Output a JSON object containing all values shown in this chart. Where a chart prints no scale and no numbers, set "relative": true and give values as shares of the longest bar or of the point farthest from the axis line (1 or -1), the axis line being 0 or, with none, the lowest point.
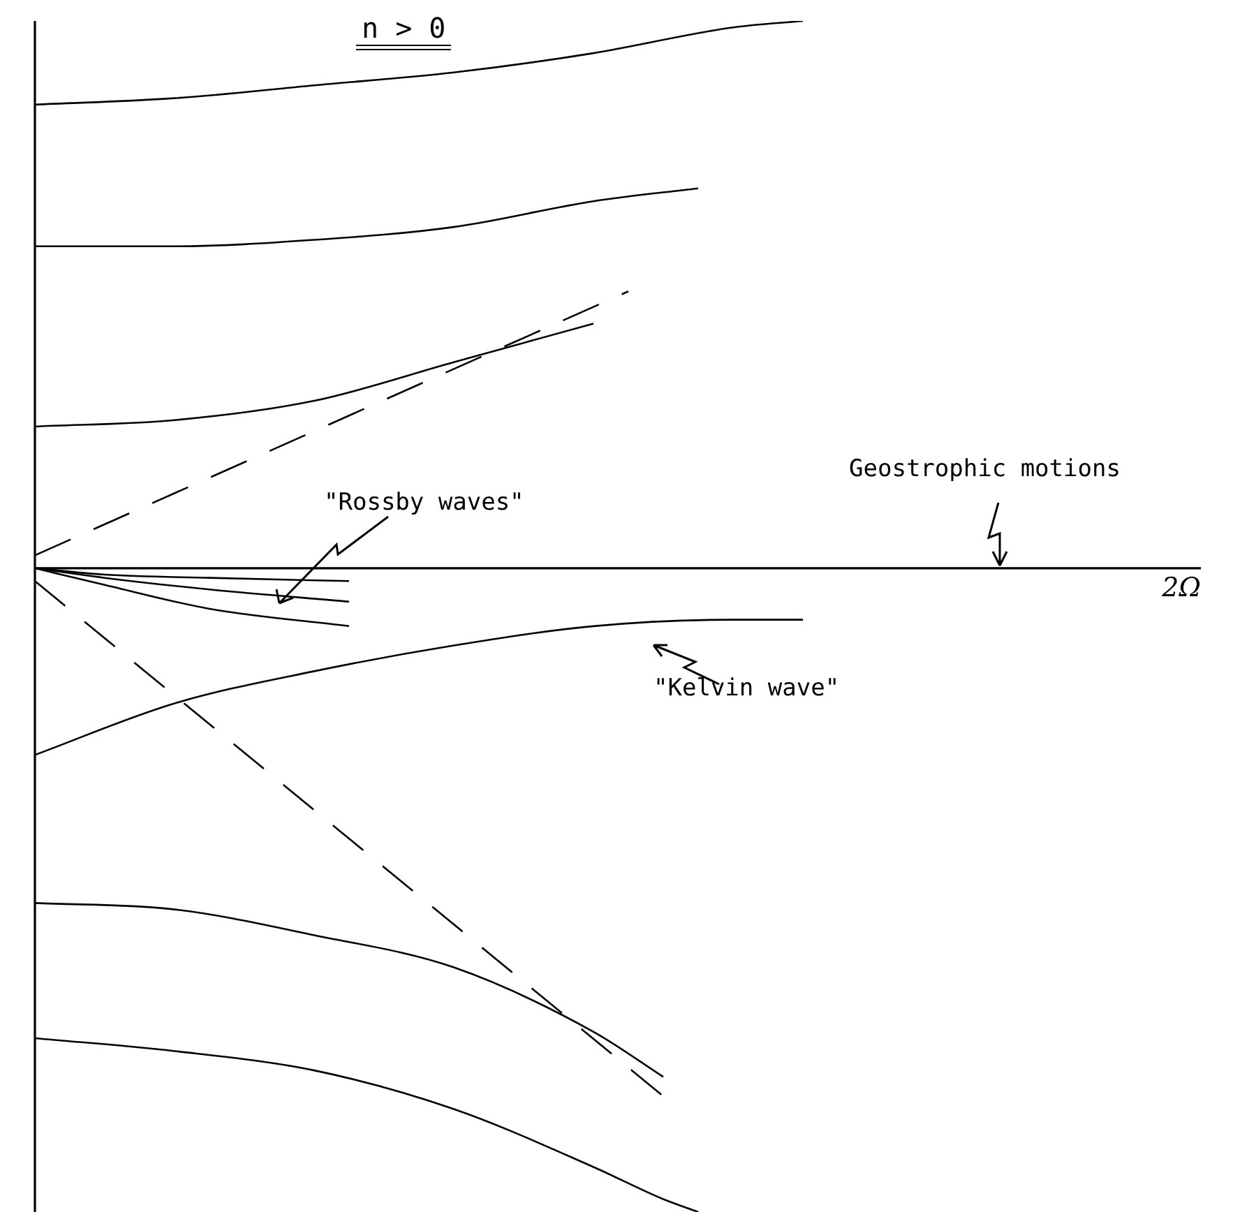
{
  "chart_data": {
    "type": "line",
    "title": "n > 0",
    "relative": true,
    "legend": false,
    "marker": "none",
    "categories": [
      null,
      null,
      null,
      null,
      null,
      null,
      null,
      null,
      null,
      null,
      null,
      null,
      null,
      null,
      null,
      null,
      null,
      null,
      null,
      null,
      null,
      null,
      null,
      null,
      null,
      null,
      null,
      null,
      null,
      null,
      null,
      null,
      null,
      null
    ],
    "series": [
      {
        "color": "#000000",
        "line_style": "solid",
        "values": [
          0.72,
          null,
          null,
          null,
          0.73,
          null,
          null,
          null,
          0.75,
          null,
          null,
          null,
          0.77,
          null,
          null,
          null,
          0.8,
          null,
          null,
          null,
          0.84,
          null,
          0.85,
          null,
          null,
          null,
          null,
          null,
          null,
          null,
          null,
          null,
          null,
          null
        ]
      },
      {
        "color": "#000000",
        "line_style": "solid",
        "values": [
          0.5,
          null,
          null,
          null,
          0.5,
          null,
          null,
          null,
          0.51,
          null,
          null,
          null,
          0.53,
          null,
          null,
          null,
          0.57,
          null,
          null,
          0.59,
          null,
          null,
          null,
          null,
          null,
          null,
          null,
          null,
          null,
          null,
          null,
          null,
          null,
          null
        ]
      },
      {
        "color": "#000000",
        "line_style": "solid",
        "values": [
          0.22,
          null,
          null,
          null,
          0.23,
          null,
          null,
          null,
          0.26,
          null,
          null,
          null,
          0.32,
          null,
          null,
          null,
          0.38,
          null,
          null,
          null,
          null,
          null,
          null,
          null,
          null,
          null,
          null,
          null,
          null,
          null,
          null,
          null,
          null,
          null
        ]
      },
      {
        "color": "#000000",
        "line_style": "dashed",
        "values": [
          0.02,
          null,
          null,
          null,
          null,
          null,
          null,
          null,
          null,
          null,
          null,
          null,
          null,
          null,
          null,
          null,
          null,
          0.43,
          null,
          null,
          null,
          null,
          null,
          null,
          null,
          null,
          null,
          null,
          null,
          null,
          null,
          null,
          null,
          null
        ]
      },
      {
        "color": "#000000",
        "line_style": "solid",
        "values": [
          0,
          null,
          -0.01,
          null,
          null,
          -0.015,
          null,
          null,
          null,
          -0.02,
          null,
          null,
          null,
          null,
          null,
          null,
          null,
          null,
          null,
          null,
          null,
          null,
          null,
          null,
          null,
          null,
          null,
          null,
          null,
          null,
          null,
          null,
          null,
          null
        ]
      },
      {
        "color": "#000000",
        "line_style": "solid",
        "values": [
          0,
          null,
          -0.015,
          null,
          null,
          -0.033,
          null,
          null,
          null,
          -0.052,
          null,
          null,
          null,
          null,
          null,
          null,
          null,
          null,
          null,
          null,
          null,
          null,
          null,
          null,
          null,
          null,
          null,
          null,
          null,
          null,
          null,
          null,
          null,
          null
        ]
      },
      {
        "color": "#000000",
        "line_style": "solid",
        "values": [
          0,
          null,
          -0.026,
          null,
          null,
          -0.063,
          null,
          null,
          null,
          -0.09,
          null,
          null,
          null,
          null,
          null,
          null,
          null,
          null,
          null,
          null,
          null,
          null,
          null,
          null,
          null,
          null,
          null,
          null,
          null,
          null,
          null,
          null,
          null,
          null
        ]
      },
      {
        "color": "#000000",
        "line_style": "solid",
        "values": [
          -0.29,
          null,
          null,
          null,
          -0.21,
          null,
          null,
          null,
          -0.16,
          null,
          null,
          null,
          -0.12,
          null,
          null,
          null,
          -0.09,
          null,
          null,
          null,
          -0.08,
          null,
          -0.08,
          null,
          null,
          null,
          null,
          null,
          null,
          null,
          null,
          null,
          null,
          null
        ]
      },
      {
        "color": "#000000",
        "line_style": "dashed",
        "values": [
          -0.02,
          null,
          null,
          null,
          null,
          null,
          null,
          null,
          null,
          null,
          null,
          null,
          null,
          null,
          null,
          null,
          null,
          null,
          -0.82,
          null,
          null,
          null,
          null,
          null,
          null,
          null,
          null,
          null,
          null,
          null,
          null,
          null,
          null,
          null
        ]
      },
      {
        "color": "#000000",
        "line_style": "solid",
        "values": [
          -0.52,
          null,
          null,
          null,
          -0.53,
          null,
          null,
          null,
          -0.57,
          null,
          null,
          null,
          -0.62,
          null,
          null,
          null,
          -0.72,
          null,
          -0.79,
          null,
          null,
          null,
          null,
          null,
          null,
          null,
          null,
          null,
          null,
          null,
          null,
          null,
          null,
          null
        ]
      },
      {
        "color": "#000000",
        "line_style": "solid",
        "values": [
          -0.73,
          null,
          null,
          null,
          -0.75,
          null,
          null,
          null,
          -0.78,
          null,
          null,
          null,
          -0.84,
          null,
          null,
          null,
          -0.93,
          null,
          -0.98,
          -1.0,
          null,
          null,
          null,
          null,
          null,
          null,
          null,
          null,
          null,
          null,
          null,
          null,
          null,
          null
        ]
      }
    ],
    "ref_lines": [
      {
        "axis": "y",
        "value": 0,
        "label": "2Ω",
        "color": "#000000"
      }
    ],
    "annotations": [
      "\"Rossby waves\"",
      "Geostrophic motions",
      "\"Kelvin wave\""
    ]
  }
}
